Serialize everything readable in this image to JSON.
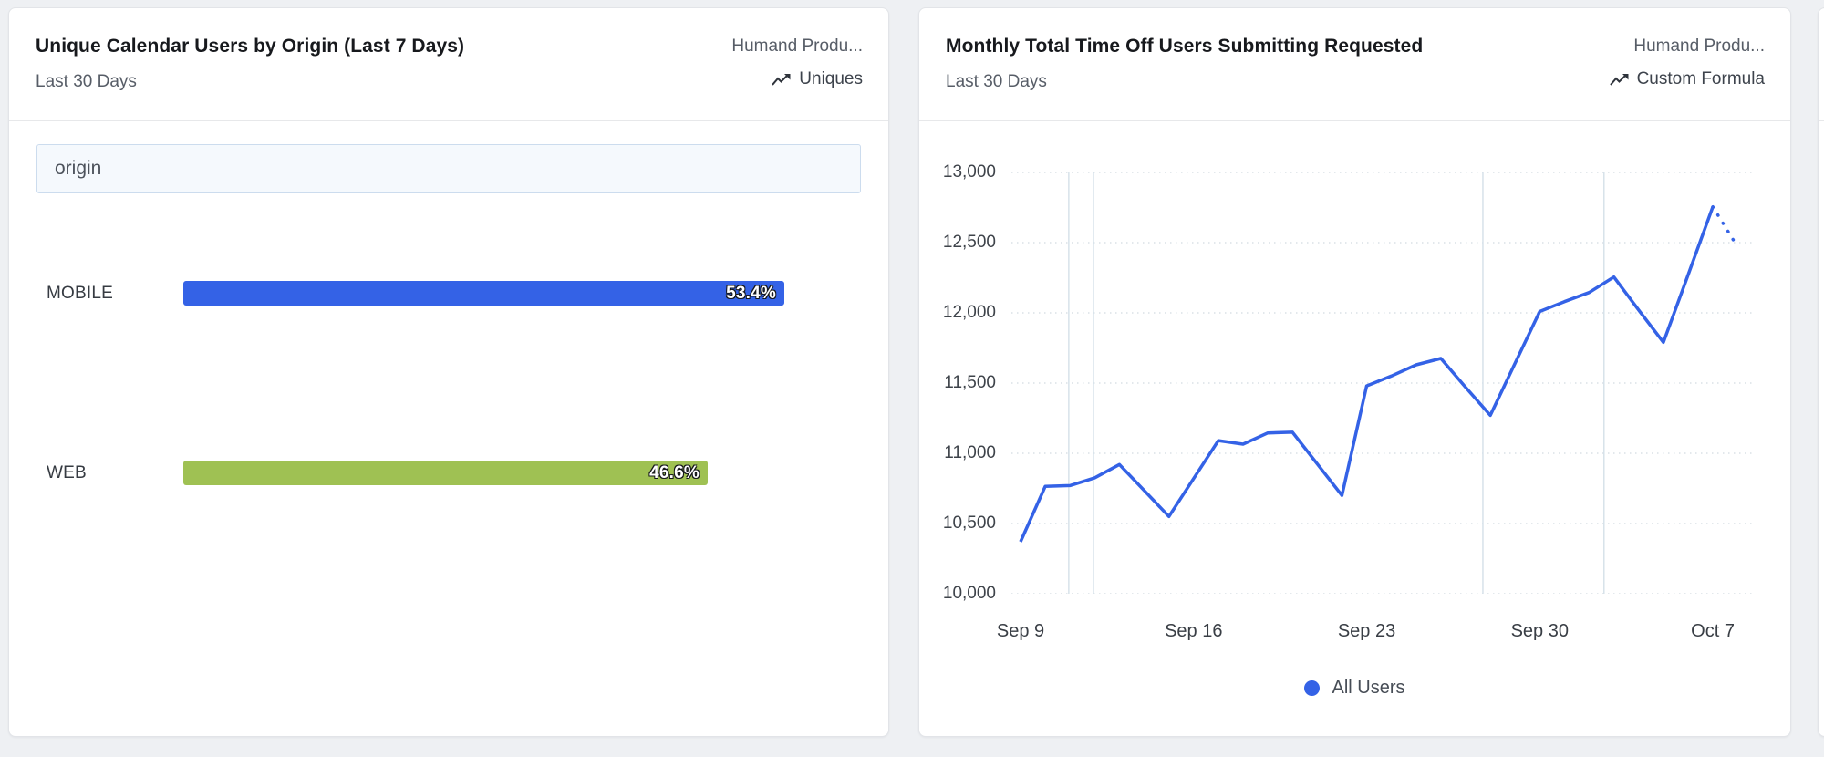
{
  "page": {
    "background_color": "#eef0f3"
  },
  "cards": {
    "left": {
      "title": "Unique Calendar Users by Origin (Last 7 Days)",
      "subtitle": "Last 30 Days",
      "source": "Humand Produ...",
      "metric_type": "Uniques",
      "filter_input": {
        "value": "origin"
      }
    },
    "right": {
      "title": "Monthly Total Time Off Users Submitting Requested",
      "subtitle": "Last 30 Days",
      "source": "Humand Produ...",
      "metric_type": "Custom Formula",
      "legend": [
        {
          "label": "All Users",
          "color": "#3462e6"
        }
      ]
    }
  },
  "chart_data": [
    {
      "type": "bar",
      "orientation": "horizontal",
      "title": "Unique Calendar Users by Origin (Last 7 Days)",
      "categories": [
        "MOBILE",
        "WEB"
      ],
      "values": [
        53.4,
        46.6
      ],
      "value_labels": [
        "53.4%",
        "46.6%"
      ],
      "bar_colors": [
        "#3462e6",
        "#9fc153"
      ],
      "unit": "%",
      "xlim": [
        0,
        53.4
      ]
    },
    {
      "type": "line",
      "title": "Monthly Total Time Off Users Submitting Requested",
      "x_tick_labels": [
        "Sep 9",
        "Sep 16",
        "Sep 23",
        "Sep 30",
        "Oct 7"
      ],
      "x_tick_day_index": [
        0,
        7,
        14,
        21,
        28
      ],
      "y_tick_labels": [
        "13,000",
        "12,500",
        "12,000",
        "11,500",
        "11,000",
        "10,500",
        "10,000"
      ],
      "y_ticks": [
        13000,
        12500,
        12000,
        11500,
        11000,
        10500,
        10000
      ],
      "ylim": [
        10000,
        13000
      ],
      "grid": "horizontal-dotted",
      "vertical_marker_day_index": [
        1.95,
        2.95,
        18.7,
        23.6
      ],
      "legend_position": "bottom-center",
      "series": [
        {
          "name": "All Users",
          "color": "#3462e6",
          "dotted_tail_segments": 1,
          "values": [
            10370,
            10765,
            10770,
            10825,
            10920,
            10735,
            10550,
            10820,
            11090,
            11065,
            11145,
            11150,
            10925,
            10700,
            11480,
            11550,
            11630,
            11675,
            11470,
            11270,
            11640,
            12010,
            12080,
            12145,
            12255,
            12020,
            11790,
            12270,
            12755,
            12470
          ]
        }
      ]
    }
  ]
}
